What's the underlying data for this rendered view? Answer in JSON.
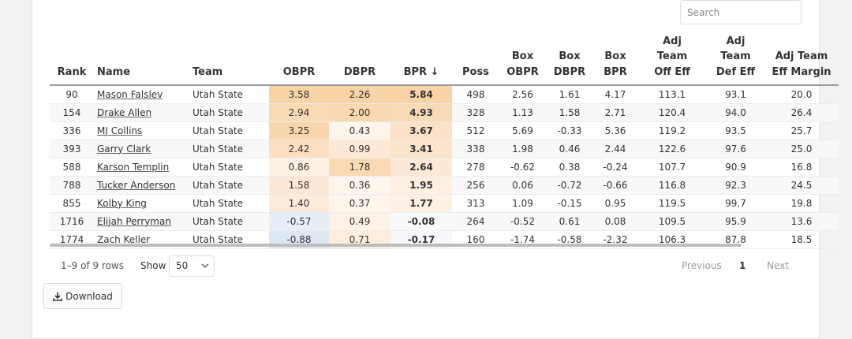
{
  "search": {
    "placeholder": "Search"
  },
  "table": {
    "columns": [
      {
        "key": "rank",
        "lines": [
          "Rank"
        ],
        "align": "c"
      },
      {
        "key": "name",
        "lines": [
          "Name"
        ],
        "align": "l"
      },
      {
        "key": "team",
        "lines": [
          "Team"
        ],
        "align": "l"
      },
      {
        "key": "obpr",
        "lines": [
          "OBPR"
        ],
        "align": "c"
      },
      {
        "key": "dbpr",
        "lines": [
          "DBPR"
        ],
        "align": "c"
      },
      {
        "key": "bpr",
        "lines": [
          "BPR ↓"
        ],
        "align": "c"
      },
      {
        "key": "poss",
        "lines": [
          "Poss"
        ],
        "align": "c"
      },
      {
        "key": "box_obpr",
        "lines": [
          "Box",
          "OBPR"
        ],
        "align": "c"
      },
      {
        "key": "box_dbpr",
        "lines": [
          "Box",
          "DBPR"
        ],
        "align": "c"
      },
      {
        "key": "box_bpr",
        "lines": [
          "Box",
          "BPR"
        ],
        "align": "c"
      },
      {
        "key": "adj_off",
        "lines": [
          "Adj",
          "Team",
          "Off Eff"
        ],
        "align": "c"
      },
      {
        "key": "adj_def",
        "lines": [
          "Adj",
          "Team",
          "Def Eff"
        ],
        "align": "c"
      },
      {
        "key": "adj_margin",
        "lines": [
          "Adj Team",
          "Eff Margin"
        ],
        "align": "c"
      }
    ],
    "rows": [
      {
        "rank": "90",
        "name": "Mason Falslev",
        "team": "Utah State",
        "obpr": "3.58",
        "dbpr": "2.26",
        "bpr": "5.84",
        "poss": "498",
        "box_obpr": "2.56",
        "box_dbpr": "1.61",
        "box_bpr": "4.17",
        "adj_off": "113.1",
        "adj_def": "93.1",
        "adj_margin": "20.0"
      },
      {
        "rank": "154",
        "name": "Drake Allen",
        "team": "Utah State",
        "obpr": "2.94",
        "dbpr": "2.00",
        "bpr": "4.93",
        "poss": "328",
        "box_obpr": "1.13",
        "box_dbpr": "1.58",
        "box_bpr": "2.71",
        "adj_off": "120.4",
        "adj_def": "94.0",
        "adj_margin": "26.4"
      },
      {
        "rank": "336",
        "name": "MJ Collins",
        "team": "Utah State",
        "obpr": "3.25",
        "dbpr": "0.43",
        "bpr": "3.67",
        "poss": "512",
        "box_obpr": "5.69",
        "box_dbpr": "-0.33",
        "box_bpr": "5.36",
        "adj_off": "119.2",
        "adj_def": "93.5",
        "adj_margin": "25.7"
      },
      {
        "rank": "393",
        "name": "Garry Clark",
        "team": "Utah State",
        "obpr": "2.42",
        "dbpr": "0.99",
        "bpr": "3.41",
        "poss": "338",
        "box_obpr": "1.98",
        "box_dbpr": "0.46",
        "box_bpr": "2.44",
        "adj_off": "122.6",
        "adj_def": "97.6",
        "adj_margin": "25.0"
      },
      {
        "rank": "588",
        "name": "Karson Templin",
        "team": "Utah State",
        "obpr": "0.86",
        "dbpr": "1.78",
        "bpr": "2.64",
        "poss": "278",
        "box_obpr": "-0.62",
        "box_dbpr": "0.38",
        "box_bpr": "-0.24",
        "adj_off": "107.7",
        "adj_def": "90.9",
        "adj_margin": "16.8"
      },
      {
        "rank": "788",
        "name": "Tucker Anderson",
        "team": "Utah State",
        "obpr": "1.58",
        "dbpr": "0.36",
        "bpr": "1.95",
        "poss": "256",
        "box_obpr": "0.06",
        "box_dbpr": "-0.72",
        "box_bpr": "-0.66",
        "adj_off": "116.8",
        "adj_def": "92.3",
        "adj_margin": "24.5"
      },
      {
        "rank": "855",
        "name": "Kolby King",
        "team": "Utah State",
        "obpr": "1.40",
        "dbpr": "0.37",
        "bpr": "1.77",
        "poss": "313",
        "box_obpr": "1.09",
        "box_dbpr": "-0.15",
        "box_bpr": "0.95",
        "adj_off": "119.5",
        "adj_def": "99.7",
        "adj_margin": "19.8"
      },
      {
        "rank": "1716",
        "name": "Elijah Perryman",
        "team": "Utah State",
        "obpr": "-0.57",
        "dbpr": "0.49",
        "bpr": "-0.08",
        "poss": "264",
        "box_obpr": "-0.52",
        "box_dbpr": "0.61",
        "box_bpr": "0.08",
        "adj_off": "109.5",
        "adj_def": "95.9",
        "adj_margin": "13.6"
      },
      {
        "rank": "1774",
        "name": "Zach Keller",
        "team": "Utah State",
        "obpr": "-0.88",
        "dbpr": "0.71",
        "bpr": "-0.17",
        "poss": "160",
        "box_obpr": "-1.74",
        "box_dbpr": "-0.58",
        "box_bpr": "-2.32",
        "adj_off": "106.3",
        "adj_def": "87.8",
        "adj_margin": "18.5"
      }
    ]
  },
  "heat": {
    "obpr": [
      "#f8d3a6",
      "#fad9b5",
      "#f9d6ad",
      "#fbdfc0",
      "#fdf1e3",
      "#fce8d4",
      "#fceadb",
      "#e6eef7",
      "#dde7f4"
    ],
    "dbpr": [
      "#f8d3a6",
      "#f9d8b1",
      "#fef5ec",
      "#fde9d6",
      "#fad9b4",
      "#fef6ed",
      "#fef5ec",
      "#fef2e6",
      "#fdeddc"
    ],
    "bpr": [
      "#f8d3a6",
      "#f9dab7",
      "#fbe1c5",
      "#fbe4cb",
      "#fce9d6",
      "#fdefe2",
      "#fdf1e6",
      "#f8f9fb",
      "#f6f8fb"
    ]
  },
  "pagination": {
    "info": "1–9 of 9 rows",
    "show_label": "Show",
    "page_size": "50",
    "prev": "Previous",
    "current": "1",
    "next": "Next"
  },
  "download": {
    "label": "Download"
  }
}
